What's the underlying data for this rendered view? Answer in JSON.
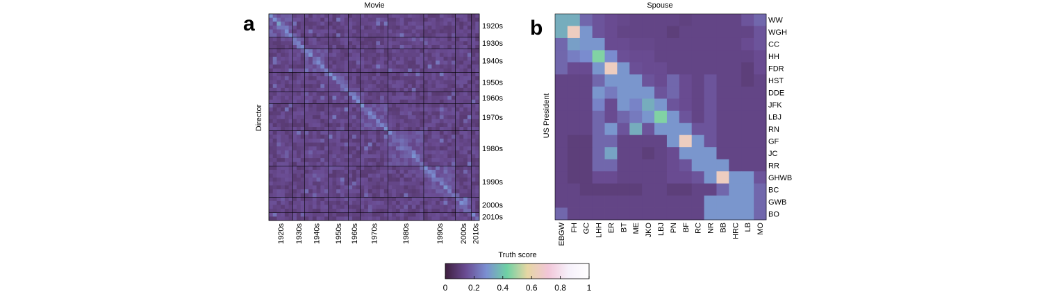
{
  "chart_data": [
    {
      "type": "heatmap",
      "panel_label": "a",
      "title": "Movie",
      "ylabel": "Director",
      "xlabel": "",
      "row_labels": [
        "1920s",
        "1930s",
        "1940s",
        "1950s",
        "1960s",
        "1970s",
        "1980s",
        "1990s",
        "2000s",
        "2010s"
      ],
      "col_labels": [
        "1920s",
        "1930s",
        "1940s",
        "1950s",
        "1960s",
        "1970s",
        "1980s",
        "1990s",
        "2000s",
        "2010s"
      ],
      "group_sizes": [
        6,
        3,
        6,
        5,
        3,
        7,
        9,
        8,
        4,
        2
      ],
      "value_range": [
        0,
        0.5
      ],
      "typical_value": 0.12,
      "diagonal_value": 0.25,
      "gridlines": true
    },
    {
      "type": "heatmap",
      "panel_label": "b",
      "title": "Spouse",
      "ylabel": "US President",
      "xlabel": "",
      "row_labels": [
        "WW",
        "WGH",
        "CC",
        "HH",
        "FDR",
        "HST",
        "DDE",
        "JFK",
        "LBJ",
        "RN",
        "GF",
        "JC",
        "RR",
        "GHWB",
        "BC",
        "GWB",
        "BO"
      ],
      "col_labels": [
        "EBGW",
        "FH",
        "GC",
        "LHH",
        "ER",
        "BT",
        "ME",
        "JKO",
        "LBJ",
        "PN",
        "BF",
        "RC",
        "NR",
        "BB",
        "HRC",
        "LB",
        "MO"
      ],
      "matrix": [
        [
          0.35,
          0.35,
          0.2,
          0.16,
          0.14,
          0.13,
          0.12,
          0.12,
          0.12,
          0.12,
          0.11,
          0.12,
          0.12,
          0.12,
          0.12,
          0.16,
          0.2
        ],
        [
          0.35,
          0.65,
          0.3,
          0.16,
          0.14,
          0.12,
          0.12,
          0.12,
          0.12,
          0.1,
          0.12,
          0.12,
          0.12,
          0.12,
          0.12,
          0.12,
          0.16
        ],
        [
          0.2,
          0.32,
          0.3,
          0.3,
          0.14,
          0.14,
          0.13,
          0.13,
          0.12,
          0.12,
          0.12,
          0.12,
          0.12,
          0.12,
          0.12,
          0.14,
          0.16
        ],
        [
          0.2,
          0.25,
          0.28,
          0.45,
          0.28,
          0.15,
          0.14,
          0.14,
          0.12,
          0.12,
          0.12,
          0.12,
          0.12,
          0.12,
          0.12,
          0.12,
          0.14
        ],
        [
          0.2,
          0.14,
          0.14,
          0.3,
          0.65,
          0.3,
          0.15,
          0.14,
          0.14,
          0.12,
          0.12,
          0.12,
          0.12,
          0.12,
          0.12,
          0.1,
          0.14
        ],
        [
          0.12,
          0.12,
          0.12,
          0.2,
          0.3,
          0.3,
          0.3,
          0.16,
          0.14,
          0.2,
          0.14,
          0.12,
          0.16,
          0.12,
          0.12,
          0.1,
          0.12
        ],
        [
          0.12,
          0.12,
          0.12,
          0.3,
          0.24,
          0.3,
          0.3,
          0.3,
          0.16,
          0.2,
          0.14,
          0.12,
          0.16,
          0.12,
          0.12,
          0.12,
          0.12
        ],
        [
          0.12,
          0.12,
          0.12,
          0.26,
          0.14,
          0.3,
          0.26,
          0.35,
          0.3,
          0.16,
          0.14,
          0.12,
          0.16,
          0.12,
          0.12,
          0.12,
          0.12
        ],
        [
          0.12,
          0.12,
          0.12,
          0.2,
          0.14,
          0.2,
          0.24,
          0.3,
          0.45,
          0.3,
          0.16,
          0.12,
          0.16,
          0.12,
          0.12,
          0.12,
          0.12
        ],
        [
          0.12,
          0.12,
          0.12,
          0.2,
          0.3,
          0.16,
          0.35,
          0.16,
          0.3,
          0.3,
          0.3,
          0.16,
          0.16,
          0.12,
          0.12,
          0.12,
          0.12
        ],
        [
          0.12,
          0.1,
          0.1,
          0.2,
          0.2,
          0.12,
          0.12,
          0.12,
          0.12,
          0.3,
          0.65,
          0.3,
          0.16,
          0.12,
          0.12,
          0.12,
          0.12
        ],
        [
          0.12,
          0.1,
          0.1,
          0.2,
          0.33,
          0.12,
          0.12,
          0.1,
          0.12,
          0.14,
          0.3,
          0.3,
          0.3,
          0.12,
          0.12,
          0.12,
          0.12
        ],
        [
          0.12,
          0.1,
          0.1,
          0.2,
          0.2,
          0.12,
          0.12,
          0.12,
          0.12,
          0.14,
          0.16,
          0.3,
          0.3,
          0.3,
          0.12,
          0.12,
          0.12
        ],
        [
          0.12,
          0.1,
          0.1,
          0.14,
          0.14,
          0.12,
          0.12,
          0.12,
          0.12,
          0.14,
          0.14,
          0.16,
          0.3,
          0.65,
          0.3,
          0.3,
          0.16
        ],
        [
          0.12,
          0.12,
          0.1,
          0.1,
          0.1,
          0.1,
          0.1,
          0.12,
          0.12,
          0.1,
          0.1,
          0.12,
          0.12,
          0.2,
          0.3,
          0.3,
          0.2
        ],
        [
          0.12,
          0.12,
          0.12,
          0.12,
          0.12,
          0.12,
          0.12,
          0.12,
          0.12,
          0.12,
          0.12,
          0.12,
          0.3,
          0.3,
          0.3,
          0.3,
          0.2
        ],
        [
          0.2,
          0.12,
          0.12,
          0.12,
          0.12,
          0.12,
          0.12,
          0.12,
          0.12,
          0.12,
          0.12,
          0.12,
          0.3,
          0.3,
          0.3,
          0.3,
          0.2
        ]
      ]
    }
  ],
  "colorbar": {
    "title": "Truth score",
    "ticks": [
      "0",
      "0.2",
      "0.4",
      "0.6",
      "0.8",
      "1"
    ],
    "range": [
      0,
      1
    ],
    "colormap": [
      "#3e1f3f",
      "#6a4c93",
      "#7b8fd2",
      "#6fd1a4",
      "#e6d6a3",
      "#f2c6d8",
      "#f6f0fa",
      "#ffffff"
    ]
  }
}
